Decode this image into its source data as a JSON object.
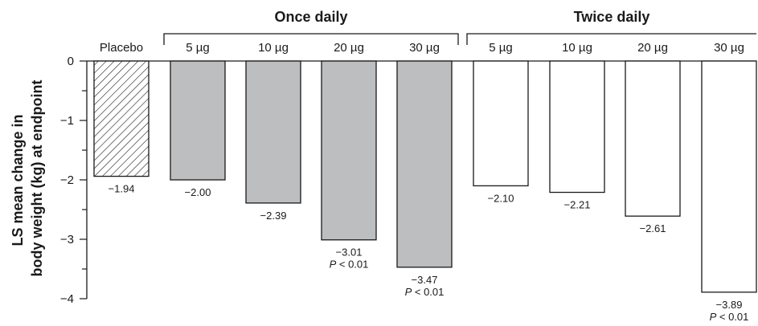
{
  "chart_data": {
    "type": "bar",
    "ylabel_lines": [
      "LS mean change in",
      "body weight (kg) at endpoint"
    ],
    "ylim": [
      -4,
      0
    ],
    "yticks": [
      0,
      -1,
      -2,
      -3,
      -4
    ],
    "ytick_labels": [
      "0",
      "−1",
      "−2",
      "−3",
      "−4"
    ],
    "grid": false,
    "groups": [
      {
        "label": "Once daily",
        "bars": [
          1,
          2,
          3,
          4
        ]
      },
      {
        "label": "Twice daily",
        "bars": [
          5,
          6,
          7,
          8
        ]
      }
    ],
    "categories": [
      "Placebo",
      "5 µg",
      "10 µg",
      "20 µg",
      "30 µg",
      "5 µg",
      "10 µg",
      "20 µg",
      "30 µg"
    ],
    "values": [
      -1.94,
      -2.0,
      -2.39,
      -3.01,
      -3.47,
      -2.1,
      -2.21,
      -2.61,
      -3.89
    ],
    "value_labels": [
      "−1.94",
      "−2.00",
      "−2.39",
      "−3.01",
      "−3.47",
      "−2.10",
      "−2.21",
      "−2.61",
      "−3.89"
    ],
    "p_labels": [
      "",
      "",
      "",
      "P < 0.01",
      "P < 0.01",
      "",
      "",
      "",
      "P < 0.01"
    ],
    "bar_styles": [
      "hatched",
      "gray",
      "gray",
      "gray",
      "gray",
      "white",
      "white",
      "white",
      "white"
    ],
    "colors": {
      "gray_fill": "#bcbec0",
      "white_fill": "#ffffff",
      "stroke": "#1a1a1a"
    }
  }
}
